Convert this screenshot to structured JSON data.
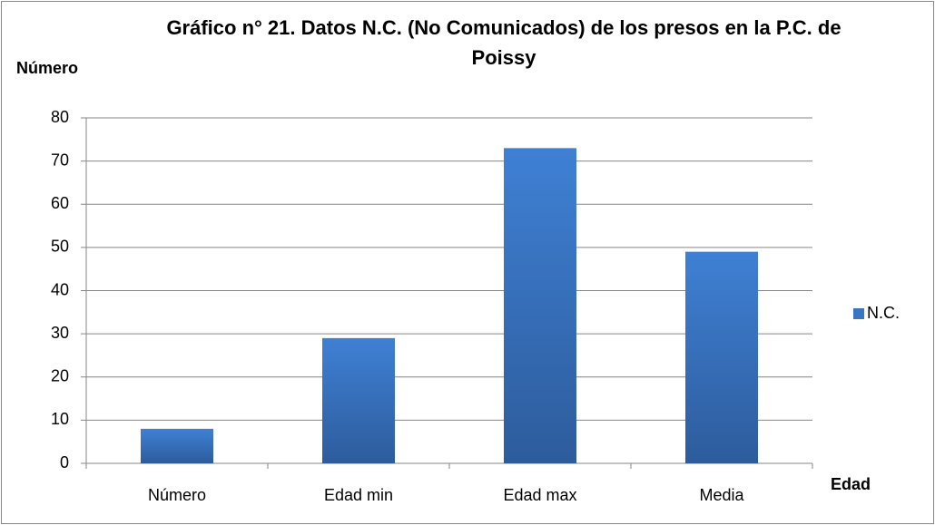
{
  "chart_data": {
    "type": "bar",
    "title": "Gráfico n° 21. Datos N.C. (No Comunicados) de los presos en la P.C. de Poissy",
    "y_label": "Número",
    "x_label": "Edad",
    "categories": [
      "Número",
      "Edad min",
      "Edad max",
      "Media"
    ],
    "series": [
      {
        "name": "N.C.",
        "color": "#3a75c4",
        "values": [
          8,
          29,
          73,
          49
        ]
      }
    ],
    "ylim": [
      0,
      80
    ],
    "yticks": [
      0,
      10,
      20,
      30,
      40,
      50,
      60,
      70,
      80
    ],
    "grid": true,
    "legend": "right"
  }
}
